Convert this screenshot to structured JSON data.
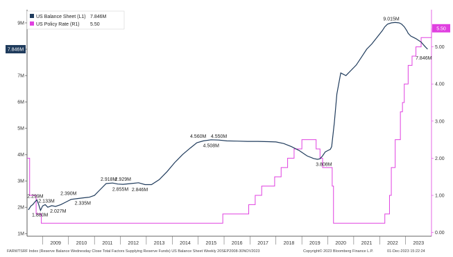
{
  "chart_data": {
    "type": "line",
    "legend": {
      "position": "top-left",
      "items": [
        {
          "label": "US Balance Sheet (L1)",
          "value": "7.846M",
          "color": "#1f3b5c"
        },
        {
          "label": "US Policy Rate (R1)",
          "value": "5.50",
          "color": "#e040e0"
        }
      ]
    },
    "grid": false,
    "x_ticks": [
      "2009",
      "2010",
      "2011",
      "2012",
      "2013",
      "2014",
      "2015",
      "2016",
      "2017",
      "2018",
      "2019",
      "2020",
      "2021",
      "2022",
      "2023"
    ],
    "xlim": [
      2008.4,
      2024.0
    ],
    "left_axis": {
      "ylim": [
        0.9,
        9.5
      ],
      "ticks": [
        1,
        2,
        3,
        4,
        5,
        6,
        7,
        8,
        9
      ],
      "tick_labels": [
        "1M",
        "2M",
        "3M",
        "4M",
        "5M",
        "6M",
        "7M",
        "8M",
        "9M"
      ]
    },
    "right_axis": {
      "ylim": [
        -0.1,
        6.0
      ],
      "ticks": [
        0,
        1,
        2,
        3,
        4,
        5
      ],
      "tick_labels": [
        "0.00",
        "1.00",
        "2.00",
        "3.00",
        "4.00",
        "5.00"
      ]
    },
    "series": [
      {
        "name": "US Balance Sheet (L1)",
        "axis": "left",
        "color": "#1f3b5c",
        "x": [
          2008.45,
          2008.55,
          2008.62,
          2008.7,
          2008.78,
          2008.85,
          2008.92,
          2009.0,
          2009.1,
          2009.2,
          2009.35,
          2009.5,
          2009.7,
          2009.9,
          2010.1,
          2010.35,
          2010.6,
          2010.8,
          2011.0,
          2011.2,
          2011.45,
          2011.7,
          2011.9,
          2012.1,
          2012.4,
          2012.7,
          2012.95,
          2013.2,
          2013.5,
          2013.8,
          2014.1,
          2014.4,
          2014.7,
          2014.95,
          2015.2,
          2015.5,
          2015.8,
          2016.1,
          2016.5,
          2016.9,
          2017.3,
          2017.7,
          2018.0,
          2018.3,
          2018.6,
          2018.9,
          2019.2,
          2019.45,
          2019.6,
          2019.7,
          2019.8,
          2019.9,
          2020.0,
          2020.1,
          2020.15,
          2020.25,
          2020.35,
          2020.5,
          2020.7,
          2020.9,
          2021.1,
          2021.3,
          2021.5,
          2021.7,
          2021.9,
          2022.1,
          2022.2,
          2022.3,
          2022.45,
          2022.6,
          2022.75,
          2022.85,
          2022.95,
          2023.05,
          2023.1,
          2023.2,
          2023.4,
          2023.6,
          2023.75,
          2023.85
        ],
        "y": [
          1.9,
          2.05,
          2.1,
          2.2,
          2.28,
          2.1,
          1.88,
          2.05,
          2.1,
          2.0,
          2.06,
          2.03,
          2.1,
          2.2,
          2.3,
          2.33,
          2.36,
          2.38,
          2.45,
          2.65,
          2.9,
          2.92,
          2.88,
          2.87,
          2.9,
          2.93,
          2.86,
          2.86,
          3.05,
          3.35,
          3.7,
          4.0,
          4.25,
          4.45,
          4.52,
          4.56,
          4.55,
          4.52,
          4.51,
          4.5,
          4.5,
          4.49,
          4.48,
          4.42,
          4.3,
          4.15,
          3.95,
          3.85,
          3.82,
          3.84,
          3.95,
          4.1,
          4.15,
          4.2,
          4.3,
          5.2,
          6.3,
          7.1,
          7.0,
          7.2,
          7.4,
          7.7,
          8.0,
          8.2,
          8.45,
          8.7,
          8.85,
          8.95,
          9.0,
          9.015,
          9.0,
          8.95,
          8.85,
          8.7,
          8.6,
          8.5,
          8.4,
          8.27,
          8.1,
          8.0
        ],
        "annotations": [
          {
            "text": "2.299M",
            "x": 2008.72,
            "y": 2.28
          },
          {
            "text": "1.880M",
            "x": 2008.9,
            "y": 1.88
          },
          {
            "text": "2.133M",
            "x": 2009.15,
            "y": 2.1
          },
          {
            "text": "2.027M",
            "x": 2009.6,
            "y": 2.03
          },
          {
            "text": "2.390M",
            "x": 2010.0,
            "y": 2.38
          },
          {
            "text": "2.335M",
            "x": 2010.55,
            "y": 2.33
          },
          {
            "text": "2.918M",
            "x": 2011.55,
            "y": 2.92
          },
          {
            "text": "2.929M",
            "x": 2012.1,
            "y": 2.93
          },
          {
            "text": "2.855M",
            "x": 2012.0,
            "y": 2.86
          },
          {
            "text": "2.846M",
            "x": 2012.75,
            "y": 2.85
          },
          {
            "text": "4.560M",
            "x": 2015.0,
            "y": 4.56
          },
          {
            "text": "4.550M",
            "x": 2015.8,
            "y": 4.55
          },
          {
            "text": "4.508M",
            "x": 2015.5,
            "y": 4.51
          },
          {
            "text": "3.808M",
            "x": 2019.85,
            "y": 3.81
          },
          {
            "text": "9.015M",
            "x": 2022.45,
            "y": 9.015
          },
          {
            "text": "7.846M",
            "x": 2023.7,
            "y": 7.846
          }
        ],
        "last_value_badge": "7.846M"
      },
      {
        "name": "US Policy Rate (R1)",
        "axis": "right",
        "color": "#e040e0",
        "step": true,
        "x": [
          2008.4,
          2008.5,
          2008.75,
          2008.95,
          2015.95,
          2016.95,
          2017.2,
          2017.45,
          2017.95,
          2018.2,
          2018.45,
          2018.7,
          2019.0,
          2019.55,
          2019.7,
          2019.8,
          2020.17,
          2020.22,
          2022.2,
          2022.38,
          2022.45,
          2022.6,
          2022.8,
          2022.88,
          2022.95,
          2023.1,
          2023.25,
          2023.4,
          2023.6,
          2024.0
        ],
        "y": [
          2.0,
          1.0,
          0.5,
          0.25,
          0.5,
          0.75,
          1.0,
          1.25,
          1.5,
          1.75,
          2.0,
          2.25,
          2.5,
          2.25,
          2.0,
          1.75,
          1.25,
          0.25,
          0.5,
          1.0,
          1.75,
          2.5,
          3.25,
          3.5,
          4.0,
          4.5,
          4.75,
          5.0,
          5.25,
          5.5
        ],
        "last_value_badge": "5.50"
      }
    ]
  },
  "footer": {
    "source": "FARWTSRF Index (Reserve Balance Wednesday Close Total Factors Supplying Reserve Funds) US Balance Sheet  Weekly 20SEP2008-30NOV2023",
    "copyright": "Copyright© 2023 Bloomberg Finance L.P.",
    "timestamp": "01-Dec-2023 15:22:24"
  }
}
